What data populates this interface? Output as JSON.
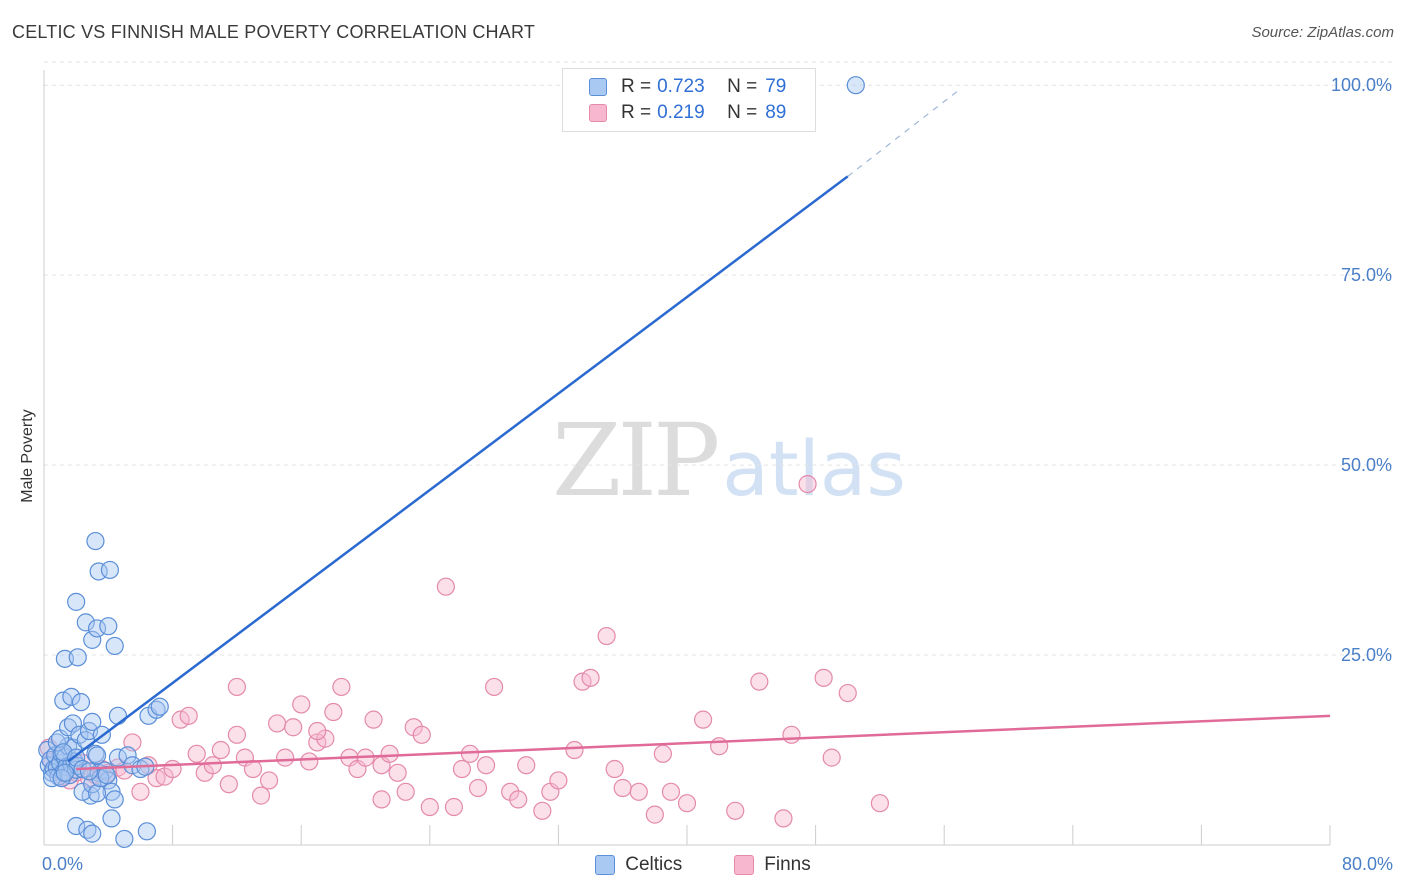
{
  "header": {
    "title": "CELTIC VS FINNISH MALE POVERTY CORRELATION CHART",
    "source": "Source: ZipAtlas.com"
  },
  "watermark": {
    "zip": "ZIP",
    "atlas": "atlas"
  },
  "colors": {
    "celtics_fill": "#a9c8f2",
    "celtics_stroke": "#5b8fd8",
    "celtics_line": "#2a6ad0",
    "finns_fill": "#f7b8cf",
    "finns_stroke": "#e48aab",
    "finns_line": "#e06b98",
    "grid": "#e3e3e3",
    "tick_text": "#4a7fc8"
  },
  "legend": {
    "r_label": "R =",
    "n_label": "N =",
    "celtics": {
      "r": "0.723",
      "n": "79"
    },
    "finns": {
      "r": "0.219",
      "n": "89"
    }
  },
  "chart_data": {
    "type": "scatter",
    "title": "CELTIC VS FINNISH MALE POVERTY CORRELATION CHART",
    "xlabel": "",
    "ylabel": "Male Poverty",
    "xlim": [
      0,
      80
    ],
    "ylim": [
      0,
      102
    ],
    "x_tick_labels": [
      "0.0%",
      "80.0%"
    ],
    "y_ticks": [
      25,
      50,
      75,
      100
    ],
    "y_tick_labels": [
      "25.0%",
      "50.0%",
      "75.0%",
      "100.0%"
    ],
    "grid": true,
    "series": [
      {
        "name": "Celtics",
        "points": [
          [
            0.2,
            12.5
          ],
          [
            0.3,
            10.5
          ],
          [
            0.4,
            11.2
          ],
          [
            0.5,
            9.5
          ],
          [
            0.6,
            10.0
          ],
          [
            0.7,
            11.8
          ],
          [
            0.8,
            10.2
          ],
          [
            0.9,
            9.0
          ],
          [
            1.0,
            10.8
          ],
          [
            1.1,
            12.0
          ],
          [
            1.2,
            9.6
          ],
          [
            1.3,
            11.5
          ],
          [
            1.4,
            10.3
          ],
          [
            1.5,
            13.0
          ],
          [
            1.6,
            9.2
          ],
          [
            1.7,
            10.6
          ],
          [
            1.8,
            12.8
          ],
          [
            1.9,
            11.0
          ],
          [
            2.0,
            9.9
          ],
          [
            2.1,
            10.4
          ],
          [
            0.5,
            8.8
          ],
          [
            0.8,
            13.5
          ],
          [
            1.0,
            14.0
          ],
          [
            1.2,
            12.2
          ],
          [
            1.5,
            15.5
          ],
          [
            1.8,
            16.0
          ],
          [
            2.0,
            11.5
          ],
          [
            2.2,
            14.5
          ],
          [
            2.4,
            10.0
          ],
          [
            2.6,
            13.8
          ],
          [
            2.8,
            15.0
          ],
          [
            3.0,
            16.2
          ],
          [
            3.2,
            12.0
          ],
          [
            3.4,
            9.5
          ],
          [
            3.6,
            14.5
          ],
          [
            3.8,
            9.8
          ],
          [
            4.0,
            8.5
          ],
          [
            4.2,
            7.0
          ],
          [
            4.4,
            6.0
          ],
          [
            4.6,
            17.0
          ],
          [
            1.2,
            19.0
          ],
          [
            1.7,
            19.5
          ],
          [
            2.3,
            18.8
          ],
          [
            1.3,
            24.5
          ],
          [
            2.1,
            24.7
          ],
          [
            2.0,
            32.0
          ],
          [
            2.6,
            29.3
          ],
          [
            3.0,
            27.0
          ],
          [
            3.3,
            28.5
          ],
          [
            4.0,
            28.8
          ],
          [
            4.4,
            26.2
          ],
          [
            3.2,
            40.0
          ],
          [
            3.4,
            36.0
          ],
          [
            4.1,
            36.2
          ],
          [
            2.9,
            6.5
          ],
          [
            2.4,
            7.0
          ],
          [
            3.0,
            8.0
          ],
          [
            3.3,
            6.8
          ],
          [
            3.5,
            8.8
          ],
          [
            4.6,
            11.5
          ],
          [
            5.2,
            11.8
          ],
          [
            5.5,
            10.5
          ],
          [
            6.0,
            10.0
          ],
          [
            6.3,
            10.3
          ],
          [
            6.5,
            17.0
          ],
          [
            7.0,
            17.8
          ],
          [
            7.2,
            18.2
          ],
          [
            2.0,
            2.5
          ],
          [
            2.7,
            2.0
          ],
          [
            3.0,
            1.5
          ],
          [
            4.2,
            3.5
          ],
          [
            5.0,
            0.8
          ],
          [
            6.4,
            1.8
          ],
          [
            3.3,
            11.8
          ],
          [
            3.9,
            9.2
          ],
          [
            1.1,
            8.8
          ],
          [
            1.3,
            9.5
          ],
          [
            2.8,
            9.7
          ],
          [
            50.5,
            100.0
          ]
        ]
      },
      {
        "name": "Finns",
        "points": [
          [
            0.3,
            12.8
          ],
          [
            0.5,
            11.0
          ],
          [
            0.8,
            10.0
          ],
          [
            1.2,
            9.0
          ],
          [
            1.6,
            8.5
          ],
          [
            2.0,
            9.5
          ],
          [
            2.4,
            10.8
          ],
          [
            2.8,
            8.8
          ],
          [
            3.2,
            9.2
          ],
          [
            3.6,
            10.0
          ],
          [
            4.0,
            9.5
          ],
          [
            4.6,
            10.2
          ],
          [
            5.0,
            9.8
          ],
          [
            5.5,
            13.5
          ],
          [
            6.0,
            7.0
          ],
          [
            6.5,
            10.5
          ],
          [
            7.0,
            8.8
          ],
          [
            7.5,
            9.0
          ],
          [
            8.0,
            10.0
          ],
          [
            8.5,
            16.5
          ],
          [
            9.0,
            17.0
          ],
          [
            9.5,
            12.0
          ],
          [
            10.0,
            9.5
          ],
          [
            10.5,
            10.5
          ],
          [
            11.0,
            12.5
          ],
          [
            11.5,
            8.0
          ],
          [
            12.0,
            20.8
          ],
          [
            12.5,
            11.5
          ],
          [
            13.0,
            10.0
          ],
          [
            13.5,
            6.5
          ],
          [
            14.0,
            8.5
          ],
          [
            14.5,
            16.0
          ],
          [
            15.0,
            11.5
          ],
          [
            15.5,
            15.5
          ],
          [
            16.0,
            18.5
          ],
          [
            16.5,
            11.0
          ],
          [
            17.0,
            13.5
          ],
          [
            17.5,
            14.0
          ],
          [
            18.0,
            17.5
          ],
          [
            18.5,
            20.8
          ],
          [
            19.0,
            11.5
          ],
          [
            19.5,
            10.0
          ],
          [
            20.0,
            11.5
          ],
          [
            20.5,
            16.5
          ],
          [
            21.0,
            10.5
          ],
          [
            21.5,
            12.0
          ],
          [
            22.0,
            9.5
          ],
          [
            22.5,
            7.0
          ],
          [
            23.0,
            15.5
          ],
          [
            23.5,
            14.5
          ],
          [
            24.0,
            5.0
          ],
          [
            25.0,
            34.0
          ],
          [
            25.5,
            5.0
          ],
          [
            26.0,
            10.0
          ],
          [
            26.5,
            12.0
          ],
          [
            27.0,
            7.5
          ],
          [
            28.0,
            20.8
          ],
          [
            29.0,
            7.0
          ],
          [
            29.5,
            6.0
          ],
          [
            30.0,
            10.5
          ],
          [
            31.0,
            4.5
          ],
          [
            31.5,
            7.0
          ],
          [
            32.0,
            8.5
          ],
          [
            33.0,
            12.5
          ],
          [
            33.5,
            21.5
          ],
          [
            34.0,
            22.0
          ],
          [
            35.0,
            27.5
          ],
          [
            36.0,
            7.5
          ],
          [
            37.0,
            7.0
          ],
          [
            38.0,
            4.0
          ],
          [
            38.5,
            12.0
          ],
          [
            39.0,
            7.0
          ],
          [
            40.0,
            5.5
          ],
          [
            41.0,
            16.5
          ],
          [
            42.0,
            13.0
          ],
          [
            43.0,
            4.5
          ],
          [
            44.5,
            21.5
          ],
          [
            46.0,
            3.5
          ],
          [
            46.5,
            14.5
          ],
          [
            47.5,
            47.5
          ],
          [
            48.5,
            22.0
          ],
          [
            49.0,
            11.5
          ],
          [
            50.0,
            20.0
          ],
          [
            52.0,
            5.5
          ],
          [
            12.0,
            14.5
          ],
          [
            21.0,
            6.0
          ],
          [
            27.5,
            10.5
          ],
          [
            35.5,
            10.0
          ],
          [
            17.0,
            15.0
          ]
        ]
      }
    ],
    "trendlines": [
      {
        "series": "Celtics",
        "solid_from": [
          1.5,
          11.0
        ],
        "solid_to": [
          50.0,
          88.0
        ],
        "dashed_to": [
          57.0,
          99.5
        ]
      },
      {
        "series": "Finns",
        "from": [
          2.0,
          10.0
        ],
        "to": [
          80.0,
          17.0
        ]
      }
    ]
  },
  "bottom_legend": {
    "celtics": "Celtics",
    "finns": "Finns"
  }
}
